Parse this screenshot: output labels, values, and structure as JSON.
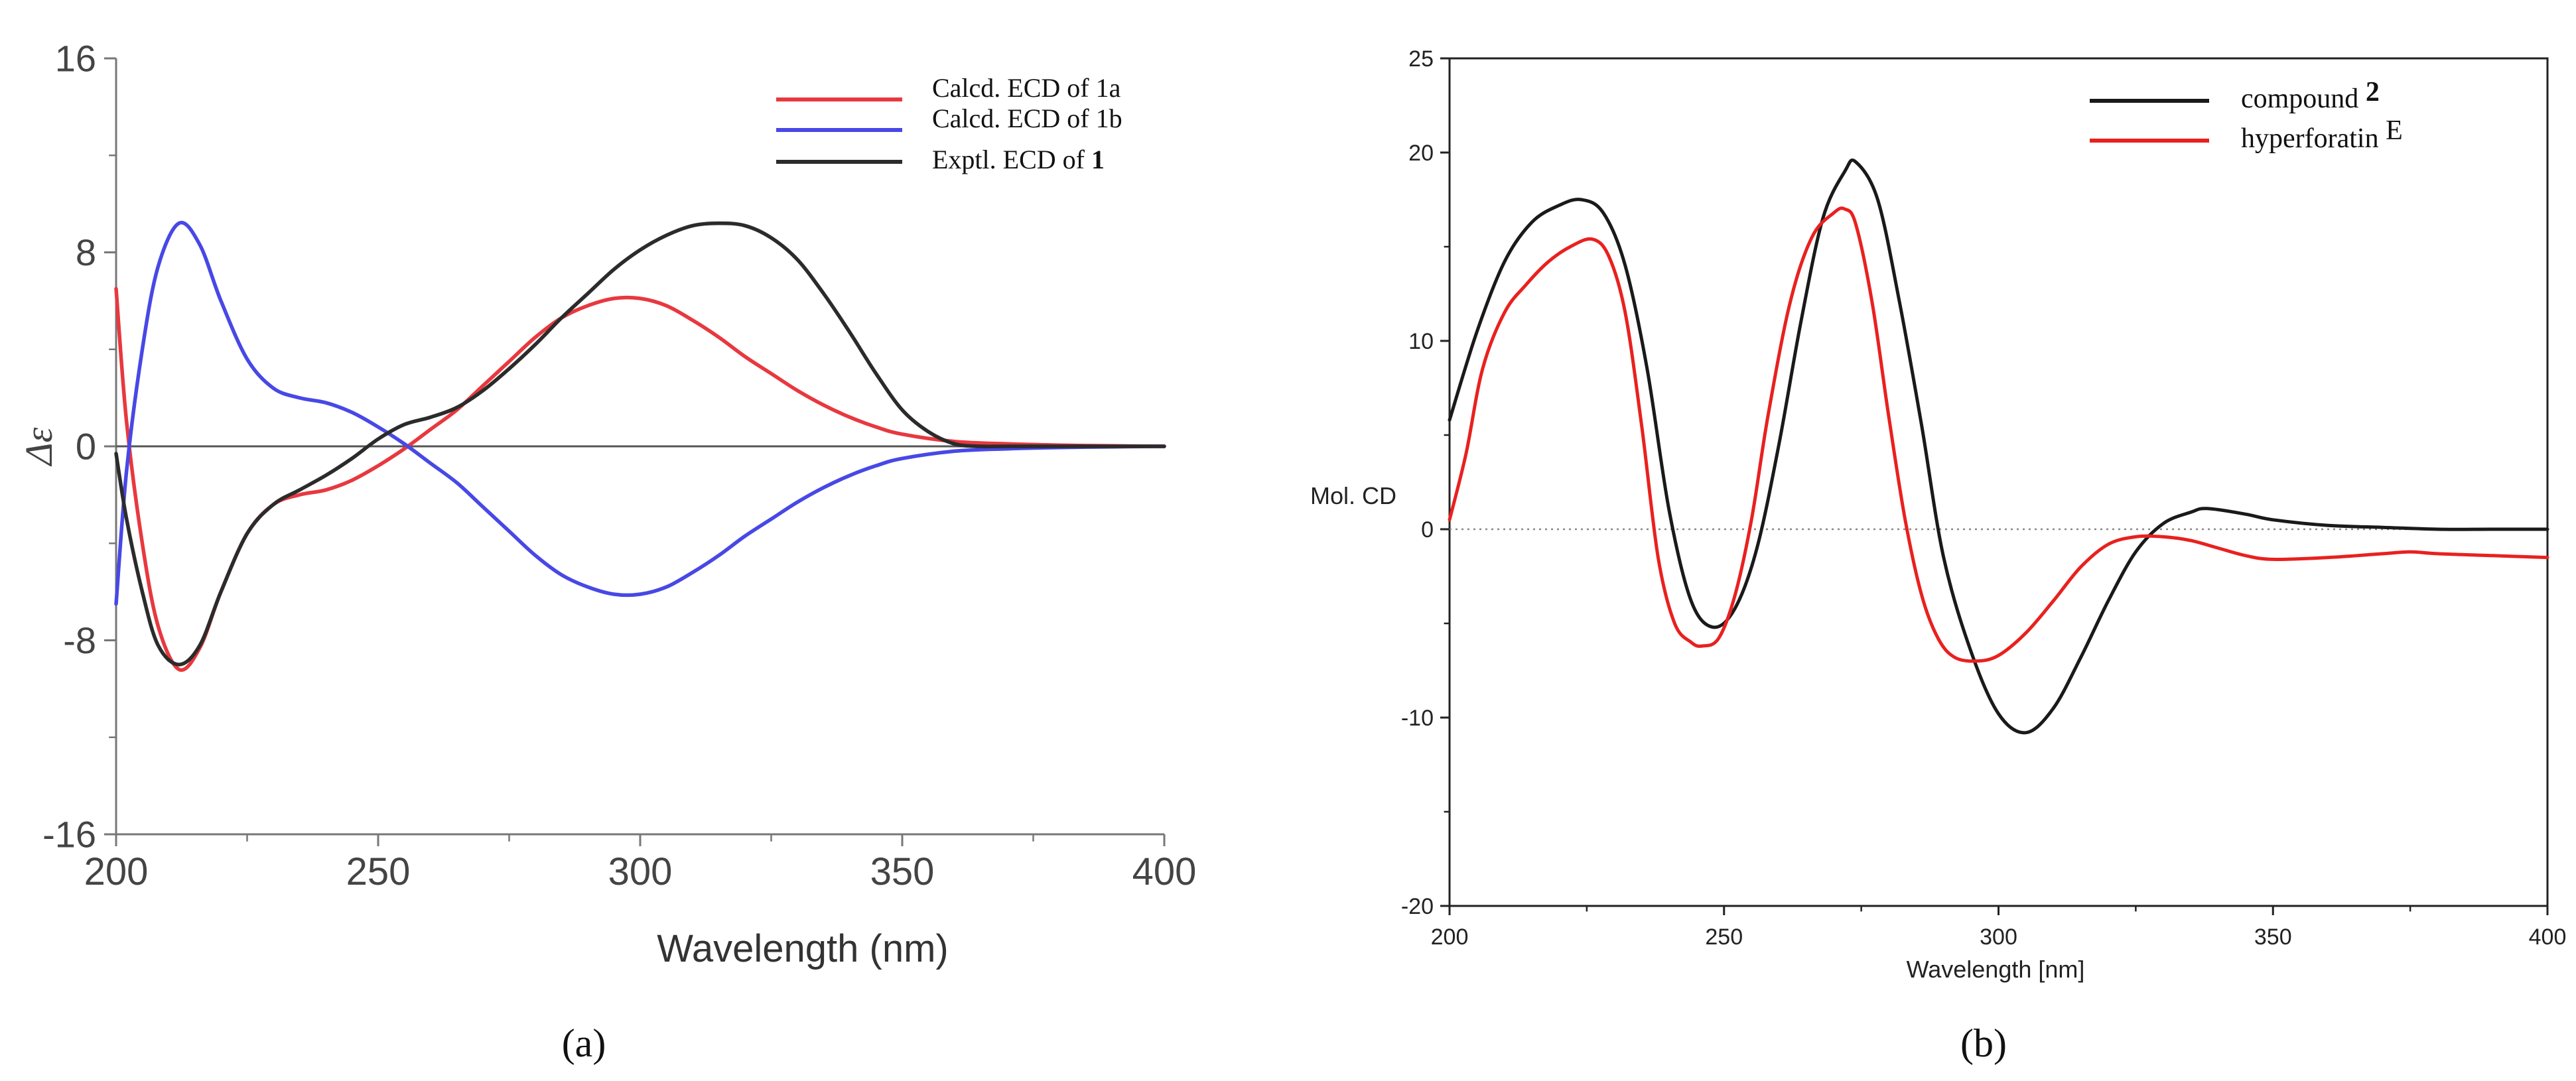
{
  "chart_data": [
    {
      "type": "line",
      "panel_label": "(a)",
      "title": "",
      "xlabel": "Wavelength (nm)",
      "ylabel": "Δε",
      "xlim": [
        200,
        400
      ],
      "ylim": [
        -16,
        16
      ],
      "x_ticks": [
        200,
        250,
        300,
        350,
        400
      ],
      "y_ticks": [
        16,
        8,
        0,
        -8,
        -16
      ],
      "zero_line": true,
      "legend_position": "top-right",
      "series": [
        {
          "name": "Calcd. ECD of 1a",
          "label_main": "Calcd. ECD of 1a",
          "label_bold": "",
          "color": "#e8383f",
          "x": [
            200,
            202,
            205,
            208,
            212,
            216,
            220,
            225,
            230,
            235,
            240,
            245,
            250,
            255,
            260,
            265,
            270,
            275,
            280,
            285,
            290,
            295,
            300,
            305,
            310,
            315,
            320,
            325,
            330,
            335,
            340,
            345,
            350,
            360,
            370,
            380,
            390,
            400
          ],
          "y": [
            6.5,
            1.0,
            -4.0,
            -7.4,
            -9.2,
            -8.3,
            -6.0,
            -3.6,
            -2.4,
            -2.0,
            -1.8,
            -1.4,
            -0.8,
            -0.1,
            0.7,
            1.5,
            2.5,
            3.5,
            4.5,
            5.3,
            5.8,
            6.1,
            6.1,
            5.8,
            5.2,
            4.5,
            3.7,
            3.0,
            2.3,
            1.7,
            1.2,
            0.8,
            0.5,
            0.2,
            0.1,
            0.05,
            0.02,
            0.0
          ]
        },
        {
          "name": "Calcd. ECD of 1b",
          "label_main": "Calcd. ECD of 1b",
          "label_bold": "",
          "color": "#4848e6",
          "x": [
            200,
            202,
            205,
            208,
            212,
            216,
            220,
            225,
            230,
            235,
            240,
            245,
            250,
            255,
            260,
            265,
            270,
            275,
            280,
            285,
            290,
            295,
            300,
            305,
            310,
            315,
            320,
            325,
            330,
            335,
            340,
            345,
            350,
            360,
            370,
            380,
            390,
            400
          ],
          "y": [
            -6.5,
            -1.0,
            4.0,
            7.4,
            9.2,
            8.3,
            6.0,
            3.6,
            2.4,
            2.0,
            1.8,
            1.4,
            0.8,
            0.1,
            -0.7,
            -1.5,
            -2.5,
            -3.5,
            -4.5,
            -5.3,
            -5.8,
            -6.1,
            -6.1,
            -5.8,
            -5.2,
            -4.5,
            -3.7,
            -3.0,
            -2.3,
            -1.7,
            -1.2,
            -0.8,
            -0.5,
            -0.2,
            -0.1,
            -0.05,
            -0.02,
            0.0
          ]
        },
        {
          "name": "Exptl. ECD of 1",
          "label_main": "Exptl. ECD of ",
          "label_bold": "1",
          "color": "#2b2b2b",
          "x": [
            200,
            202,
            205,
            208,
            212,
            216,
            220,
            225,
            230,
            235,
            240,
            245,
            250,
            255,
            260,
            265,
            270,
            275,
            280,
            285,
            290,
            295,
            300,
            305,
            310,
            315,
            320,
            325,
            330,
            335,
            340,
            345,
            350,
            355,
            360,
            365,
            370,
            380,
            390,
            400
          ],
          "y": [
            -0.3,
            -3.0,
            -6.0,
            -8.2,
            -9.0,
            -8.2,
            -6.0,
            -3.6,
            -2.4,
            -1.8,
            -1.2,
            -0.5,
            0.3,
            0.9,
            1.2,
            1.6,
            2.3,
            3.2,
            4.2,
            5.3,
            6.3,
            7.3,
            8.1,
            8.7,
            9.1,
            9.2,
            9.1,
            8.6,
            7.7,
            6.3,
            4.7,
            3.0,
            1.5,
            0.6,
            0.1,
            0.0,
            0.0,
            0.0,
            0.0,
            0.0
          ]
        }
      ]
    },
    {
      "type": "line",
      "panel_label": "(b)",
      "title": "",
      "xlabel": "Wavelength [nm]",
      "ylabel": "Mol. CD",
      "xlim": [
        200,
        400
      ],
      "ylim": [
        -20,
        25
      ],
      "x_ticks": [
        200,
        250,
        300,
        350,
        400
      ],
      "y_ticks": [
        25,
        20,
        10,
        0,
        -10,
        -20
      ],
      "zero_line": "dotted",
      "legend_position": "top-right",
      "series": [
        {
          "name": "compound 2",
          "label_main": "compound ",
          "label_bold": "2",
          "label_sup": "",
          "color": "#1a1a1a",
          "x": [
            200,
            205,
            210,
            215,
            220,
            224,
            228,
            232,
            236,
            240,
            244,
            248,
            252,
            256,
            260,
            264,
            268,
            272,
            274,
            278,
            282,
            286,
            290,
            295,
            300,
            305,
            310,
            315,
            320,
            325,
            330,
            335,
            338,
            345,
            350,
            360,
            370,
            380,
            390,
            400
          ],
          "y": [
            5.8,
            10.5,
            14.2,
            16.3,
            17.2,
            17.5,
            16.8,
            14.0,
            8.5,
            1.0,
            -3.8,
            -5.2,
            -4.2,
            -1.0,
            4.5,
            11.0,
            16.5,
            19.0,
            19.5,
            17.5,
            12.0,
            5.5,
            -1.5,
            -6.5,
            -9.8,
            -10.8,
            -9.5,
            -6.8,
            -3.8,
            -1.2,
            0.3,
            0.9,
            1.1,
            0.8,
            0.5,
            0.2,
            0.1,
            0.0,
            0.0,
            0.0
          ]
        },
        {
          "name": "hyperforatin E",
          "label_main": "hyperforatin ",
          "label_bold": "",
          "label_sup": "E",
          "color": "#e8211f",
          "x": [
            200,
            203,
            206,
            210,
            214,
            218,
            222,
            226,
            229,
            232,
            235,
            238,
            241,
            244,
            246,
            249,
            252,
            255,
            258,
            262,
            266,
            270,
            272,
            274,
            277,
            280,
            283,
            286,
            289,
            292,
            296,
            300,
            305,
            310,
            315,
            320,
            325,
            330,
            335,
            340,
            345,
            350,
            360,
            370,
            375,
            380,
            390,
            400
          ],
          "y": [
            0.5,
            4.0,
            8.5,
            11.5,
            13.0,
            14.2,
            15.0,
            15.4,
            14.5,
            11.5,
            5.5,
            -1.5,
            -5.0,
            -6.0,
            -6.2,
            -5.8,
            -3.5,
            0.5,
            6.0,
            12.0,
            15.5,
            16.8,
            17.0,
            16.2,
            12.0,
            6.0,
            0.5,
            -3.5,
            -5.8,
            -6.8,
            -7.0,
            -6.7,
            -5.5,
            -3.8,
            -2.0,
            -0.8,
            -0.4,
            -0.4,
            -0.6,
            -1.0,
            -1.4,
            -1.6,
            -1.5,
            -1.3,
            -1.2,
            -1.3,
            -1.4,
            -1.5
          ]
        }
      ]
    }
  ]
}
